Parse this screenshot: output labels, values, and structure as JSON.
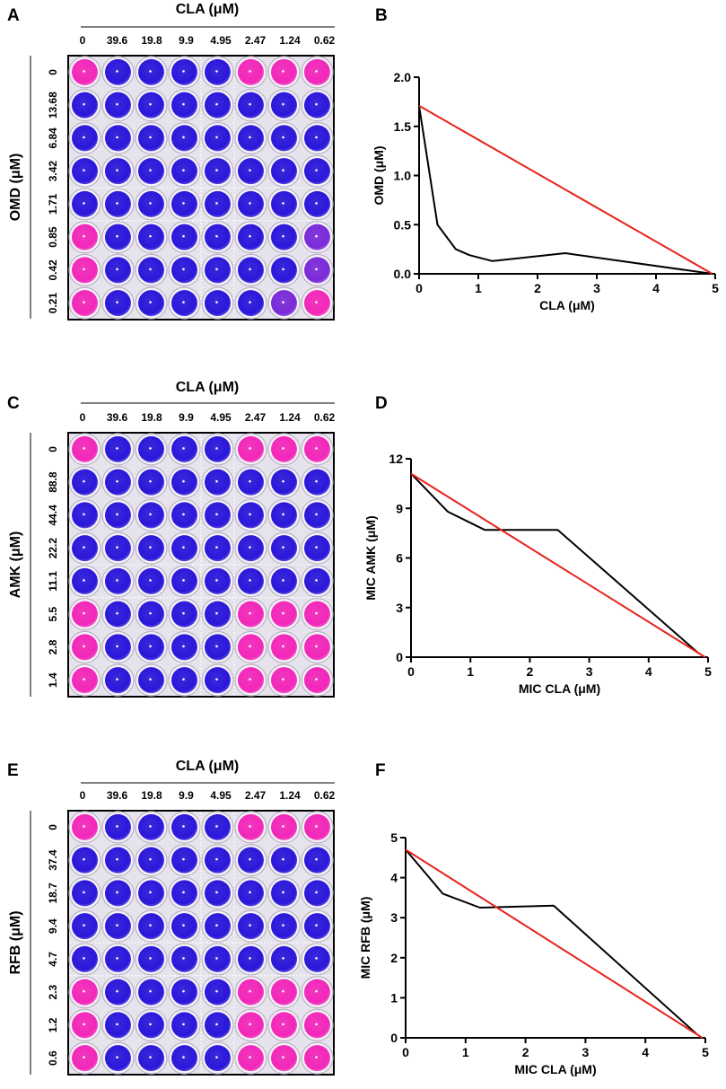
{
  "panels": [
    {
      "letter": "A",
      "type": "plate",
      "column_header": "CLA (μM)",
      "columns": [
        "0",
        "39.6",
        "19.8",
        "9.9",
        "4.95",
        "2.47",
        "1.24",
        "0.62"
      ],
      "row_title": "OMD (μM)",
      "rows": [
        "0",
        "13.68",
        "6.84",
        "3.42",
        "1.71",
        "0.85",
        "0.42",
        "0.21"
      ],
      "wells": [
        "PBBBBPPP",
        "BBBBBBBB",
        "BBBBBBBB",
        "BBBBBBBB",
        "BBBBBBBB",
        "PBBBBBBV",
        "PBBBBBBV",
        "PBBBBBVP"
      ]
    },
    {
      "letter": "C",
      "type": "plate",
      "column_header": "CLA (μM)",
      "columns": [
        "0",
        "39.6",
        "19.8",
        "9.9",
        "4.95",
        "2.47",
        "1.24",
        "0.62"
      ],
      "row_title": "AMK (μM)",
      "rows": [
        "0",
        "88.8",
        "44.4",
        "22.2",
        "11.1",
        "5.5",
        "2.8",
        "1.4"
      ],
      "wells": [
        "PBBBBPPP",
        "BBBBBBBB",
        "BBBBBBBB",
        "BBBBBBBB",
        "BBBBBBBB",
        "PBBBBPPP",
        "PBBBBPPP",
        "PBBBBPPP"
      ]
    },
    {
      "letter": "E",
      "type": "plate",
      "column_header": "CLA (μM)",
      "columns": [
        "0",
        "39.6",
        "19.8",
        "9.9",
        "4.95",
        "2.47",
        "1.24",
        "0.62"
      ],
      "row_title": "RFB (μM)",
      "rows": [
        "0",
        "37.4",
        "18.7",
        "9.4",
        "4.7",
        "2.3",
        "1.2",
        "0.6"
      ],
      "wells": [
        "PBBBBPPP",
        "BBBBBBBB",
        "BBBBBBBB",
        "BBBBBBBB",
        "BBBBBBBB",
        "PBBBBPPP",
        "PBBBBPPP",
        "PBBBBPPP"
      ]
    }
  ],
  "well_colors": {
    "P": "#f227b9",
    "B": "#2a17d9",
    "V": "#7a2ad8"
  },
  "chart_data": [
    {
      "letter": "B",
      "type": "line",
      "xlabel": "CLA (μM)",
      "ylabel": "OMD (μM)",
      "xlim": [
        0,
        5
      ],
      "ylim": [
        0,
        2.0
      ],
      "xticks": [
        "0",
        "1",
        "2",
        "3",
        "4",
        "5"
      ],
      "yticks": [
        "0.0",
        "0.5",
        "1.0",
        "1.5",
        "2.0"
      ],
      "series": [
        {
          "name": "isobologram",
          "color": "#000000",
          "x": [
            0,
            0.31,
            0.62,
            0.85,
            1.24,
            2.47,
            4.95
          ],
          "y": [
            1.71,
            0.5,
            0.25,
            0.19,
            0.13,
            0.21,
            0
          ]
        },
        {
          "name": "additivity line",
          "color": "#e8211b",
          "x": [
            0,
            4.95
          ],
          "y": [
            1.71,
            0
          ]
        }
      ]
    },
    {
      "letter": "D",
      "type": "line",
      "xlabel": "MIC CLA (μM)",
      "ylabel": "MIC AMK (μM)",
      "xlim": [
        0,
        5
      ],
      "ylim": [
        0,
        12
      ],
      "xticks": [
        "0",
        "1",
        "2",
        "3",
        "4",
        "5"
      ],
      "yticks": [
        "0",
        "3",
        "6",
        "9",
        "12"
      ],
      "series": [
        {
          "name": "isobologram",
          "color": "#000000",
          "x": [
            0,
            0.62,
            1.24,
            2.47,
            4.85
          ],
          "y": [
            11.1,
            8.8,
            7.7,
            7.7,
            0.2
          ]
        },
        {
          "name": "additivity line",
          "color": "#e8211b",
          "x": [
            0,
            4.95
          ],
          "y": [
            11.1,
            0
          ]
        }
      ]
    },
    {
      "letter": "F",
      "type": "line",
      "xlabel": "MIC CLA (μM)",
      "ylabel": "MIC RFB (μM)",
      "xlim": [
        0,
        5
      ],
      "ylim": [
        0,
        5
      ],
      "xticks": [
        "0",
        "1",
        "2",
        "3",
        "4",
        "5"
      ],
      "yticks": [
        "0",
        "1",
        "2",
        "3",
        "4",
        "5"
      ],
      "series": [
        {
          "name": "isobologram",
          "color": "#000000",
          "x": [
            0,
            0.62,
            1.24,
            2.47,
            4.85
          ],
          "y": [
            4.7,
            3.6,
            3.25,
            3.3,
            0.1
          ]
        },
        {
          "name": "additivity line",
          "color": "#e8211b",
          "x": [
            0,
            4.95
          ],
          "y": [
            4.7,
            0
          ]
        }
      ]
    }
  ]
}
